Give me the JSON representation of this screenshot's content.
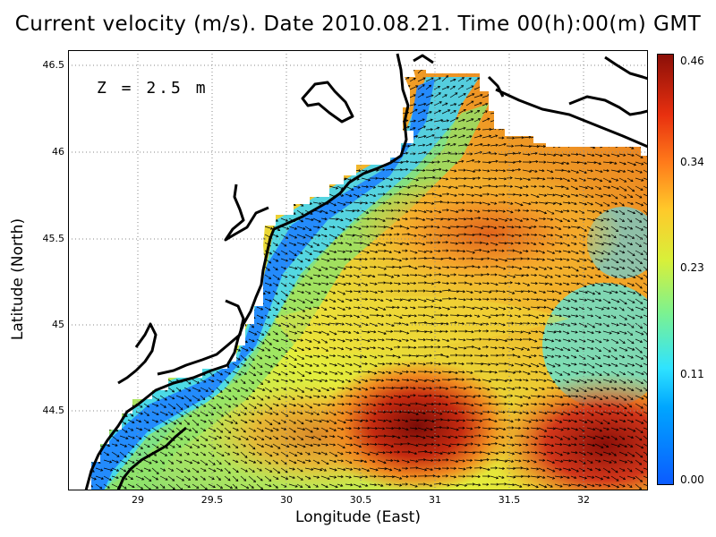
{
  "title": "Current velocity (m/s). Date 2010.08.21. Time 00(h):00(m) GMT",
  "depth_label": "Z = 2.5 m",
  "xlabel": "Longitude (East)",
  "ylabel": "Latitude (North)",
  "x_ticks": [
    "29",
    "29.5",
    "30",
    "30.5",
    "31",
    "31.5",
    "32"
  ],
  "y_ticks": [
    "46.5",
    "46",
    "45.5",
    "45",
    "44.5"
  ],
  "colorbar": {
    "labels": [
      "0.46",
      "0.34",
      "0.23",
      "0.11",
      "0.00"
    ],
    "min": 0.0,
    "max": 0.46
  },
  "chart_data": {
    "type": "heatmap",
    "title": "Current velocity (m/s). Date 2010.08.21. Time 00(h):00(m) GMT",
    "xlabel": "Longitude (East)",
    "ylabel": "Latitude (North)",
    "xlim": [
      28.55,
      32.45
    ],
    "ylim": [
      44.03,
      46.54
    ],
    "grid": true,
    "colorbar_range": [
      0.0,
      0.46
    ],
    "hotspots": [
      {
        "lon": 30.9,
        "lat": 44.45,
        "speed": 0.45
      },
      {
        "lon": 32.3,
        "lat": 44.25,
        "speed": 0.46
      },
      {
        "lon": 31.4,
        "lat": 45.6,
        "speed": 0.38
      }
    ]
  },
  "colors": {
    "land": "#ffffff",
    "coastline": "#000000",
    "low": "#0b5bff",
    "high": "#8b0f08"
  }
}
